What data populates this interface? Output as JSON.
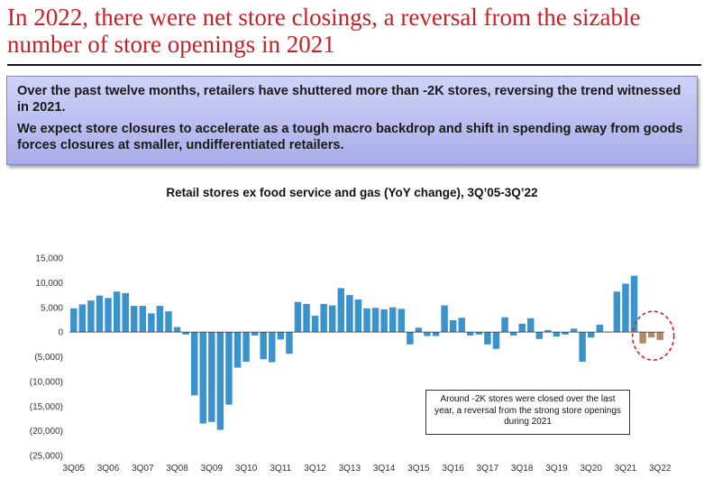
{
  "slide": {
    "title": "In 2022, there were net store closings, a reversal from the sizable number of store openings in 2021"
  },
  "callout": {
    "line1": "Over the past twelve months, retailers have shuttered more than -2K stores, reversing the trend witnessed in 2021.",
    "line2": "We expect store closures to accelerate as a tough macro backdrop and shift in spending away from goods forces closures at smaller, undifferentiated retailers."
  },
  "annotation": {
    "text": "Around -2K stores were closed over the last year, a reversal from the strong store openings during 2021"
  },
  "colors": {
    "title": "#cc1f24",
    "positive_bar": "#3a93cc",
    "negative_bar": "#3a93cc",
    "recent_bar": "#b38a68",
    "highlight_circle": "#d41f26"
  },
  "chart_data": {
    "type": "bar",
    "title": "Retail stores ex food service and gas (YoY change), 3Q’05-3Q’22",
    "xlabel": "",
    "ylabel": "",
    "ylim": [
      -25000,
      15000
    ],
    "yticks": [
      15000,
      10000,
      5000,
      0,
      -5000,
      -10000,
      -15000,
      -20000,
      -25000
    ],
    "ytick_labels": [
      "15,000",
      "10,000",
      "5,000",
      "0",
      "(5,000)",
      "(10,000)",
      "(15,000)",
      "(20,000)",
      "(25,000)"
    ],
    "xtick_labels": [
      "3Q05",
      "3Q06",
      "3Q07",
      "3Q08",
      "3Q09",
      "3Q10",
      "3Q11",
      "3Q12",
      "3Q13",
      "3Q14",
      "3Q15",
      "3Q16",
      "3Q17",
      "3Q18",
      "3Q19",
      "3Q20",
      "3Q21",
      "3Q22"
    ],
    "categories": [
      "3Q05",
      "4Q05",
      "1Q06",
      "2Q06",
      "3Q06",
      "4Q06",
      "1Q07",
      "2Q07",
      "3Q07",
      "4Q07",
      "1Q08",
      "2Q08",
      "3Q08",
      "4Q08",
      "1Q09",
      "2Q09",
      "3Q09",
      "4Q09",
      "1Q10",
      "2Q10",
      "3Q10",
      "4Q10",
      "1Q11",
      "2Q11",
      "3Q11",
      "4Q11",
      "1Q12",
      "2Q12",
      "3Q12",
      "4Q12",
      "1Q13",
      "2Q13",
      "3Q13",
      "4Q13",
      "1Q14",
      "2Q14",
      "3Q14",
      "4Q14",
      "1Q15",
      "2Q15",
      "3Q15",
      "4Q15",
      "1Q16",
      "2Q16",
      "3Q16",
      "4Q16",
      "1Q17",
      "2Q17",
      "3Q17",
      "4Q17",
      "1Q18",
      "2Q18",
      "3Q18",
      "4Q18",
      "1Q19",
      "2Q19",
      "3Q19",
      "4Q19",
      "1Q20",
      "2Q20",
      "3Q20",
      "4Q20",
      "1Q21",
      "2Q21",
      "3Q21",
      "4Q21",
      "1Q22",
      "2Q22",
      "3Q22"
    ],
    "values": [
      4800,
      5600,
      6400,
      7400,
      6900,
      8200,
      7900,
      5300,
      5300,
      3800,
      5300,
      4200,
      1000,
      -500,
      -12800,
      -18500,
      -18200,
      -19800,
      -14700,
      -7200,
      -6000,
      -700,
      -5500,
      -6100,
      -1500,
      -4400,
      6100,
      5700,
      3300,
      5700,
      5400,
      8900,
      7500,
      6600,
      4800,
      4900,
      4600,
      5000,
      4700,
      -2500,
      900,
      -800,
      -800,
      5400,
      2400,
      2900,
      -700,
      -500,
      -2500,
      -3400,
      3000,
      -700,
      1700,
      2800,
      -1400,
      400,
      -900,
      -500,
      700,
      -6000,
      -1100,
      1500,
      100,
      8200,
      9800,
      11400,
      -2300,
      -1100,
      -1600
    ],
    "highlight_from_index": 66,
    "grid": false,
    "legend": "none"
  }
}
